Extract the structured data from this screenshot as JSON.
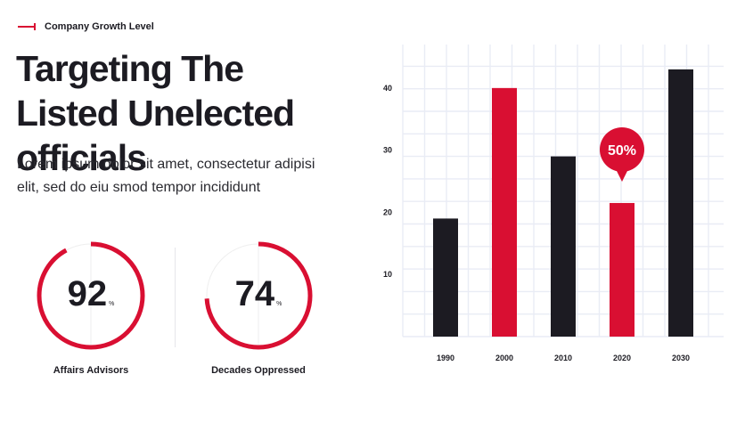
{
  "eyebrow": "Company Growth Level",
  "headline": "Targeting The Listed Unelected officials",
  "intro": "Lorem ipsum dolor sit amet, consectetur adipisi elit, sed do eiu smod tempor incididunt",
  "stats": [
    {
      "value": "92",
      "unit": "%",
      "percent": 92,
      "label": "Affairs Advisors"
    },
    {
      "value": "74",
      "unit": "%",
      "percent": 74,
      "label": "Decades Oppressed"
    }
  ],
  "colors": {
    "accent": "#d90f32",
    "dark": "#1c1b22",
    "grid": "#e9ecf5",
    "track": "#eeeeee"
  },
  "chart_data": {
    "type": "bar",
    "categories": [
      "1990",
      "2000",
      "2010",
      "2020",
      "2030"
    ],
    "values": [
      19,
      40,
      29,
      21.5,
      43
    ],
    "bar_colors": [
      "#1c1b22",
      "#d90f32",
      "#1c1b22",
      "#d90f32",
      "#1c1b22"
    ],
    "yticks": [
      10,
      20,
      30,
      40
    ],
    "ylim": [
      0,
      47
    ],
    "grid": true,
    "callout": {
      "category": "2020",
      "text": "50%"
    }
  }
}
